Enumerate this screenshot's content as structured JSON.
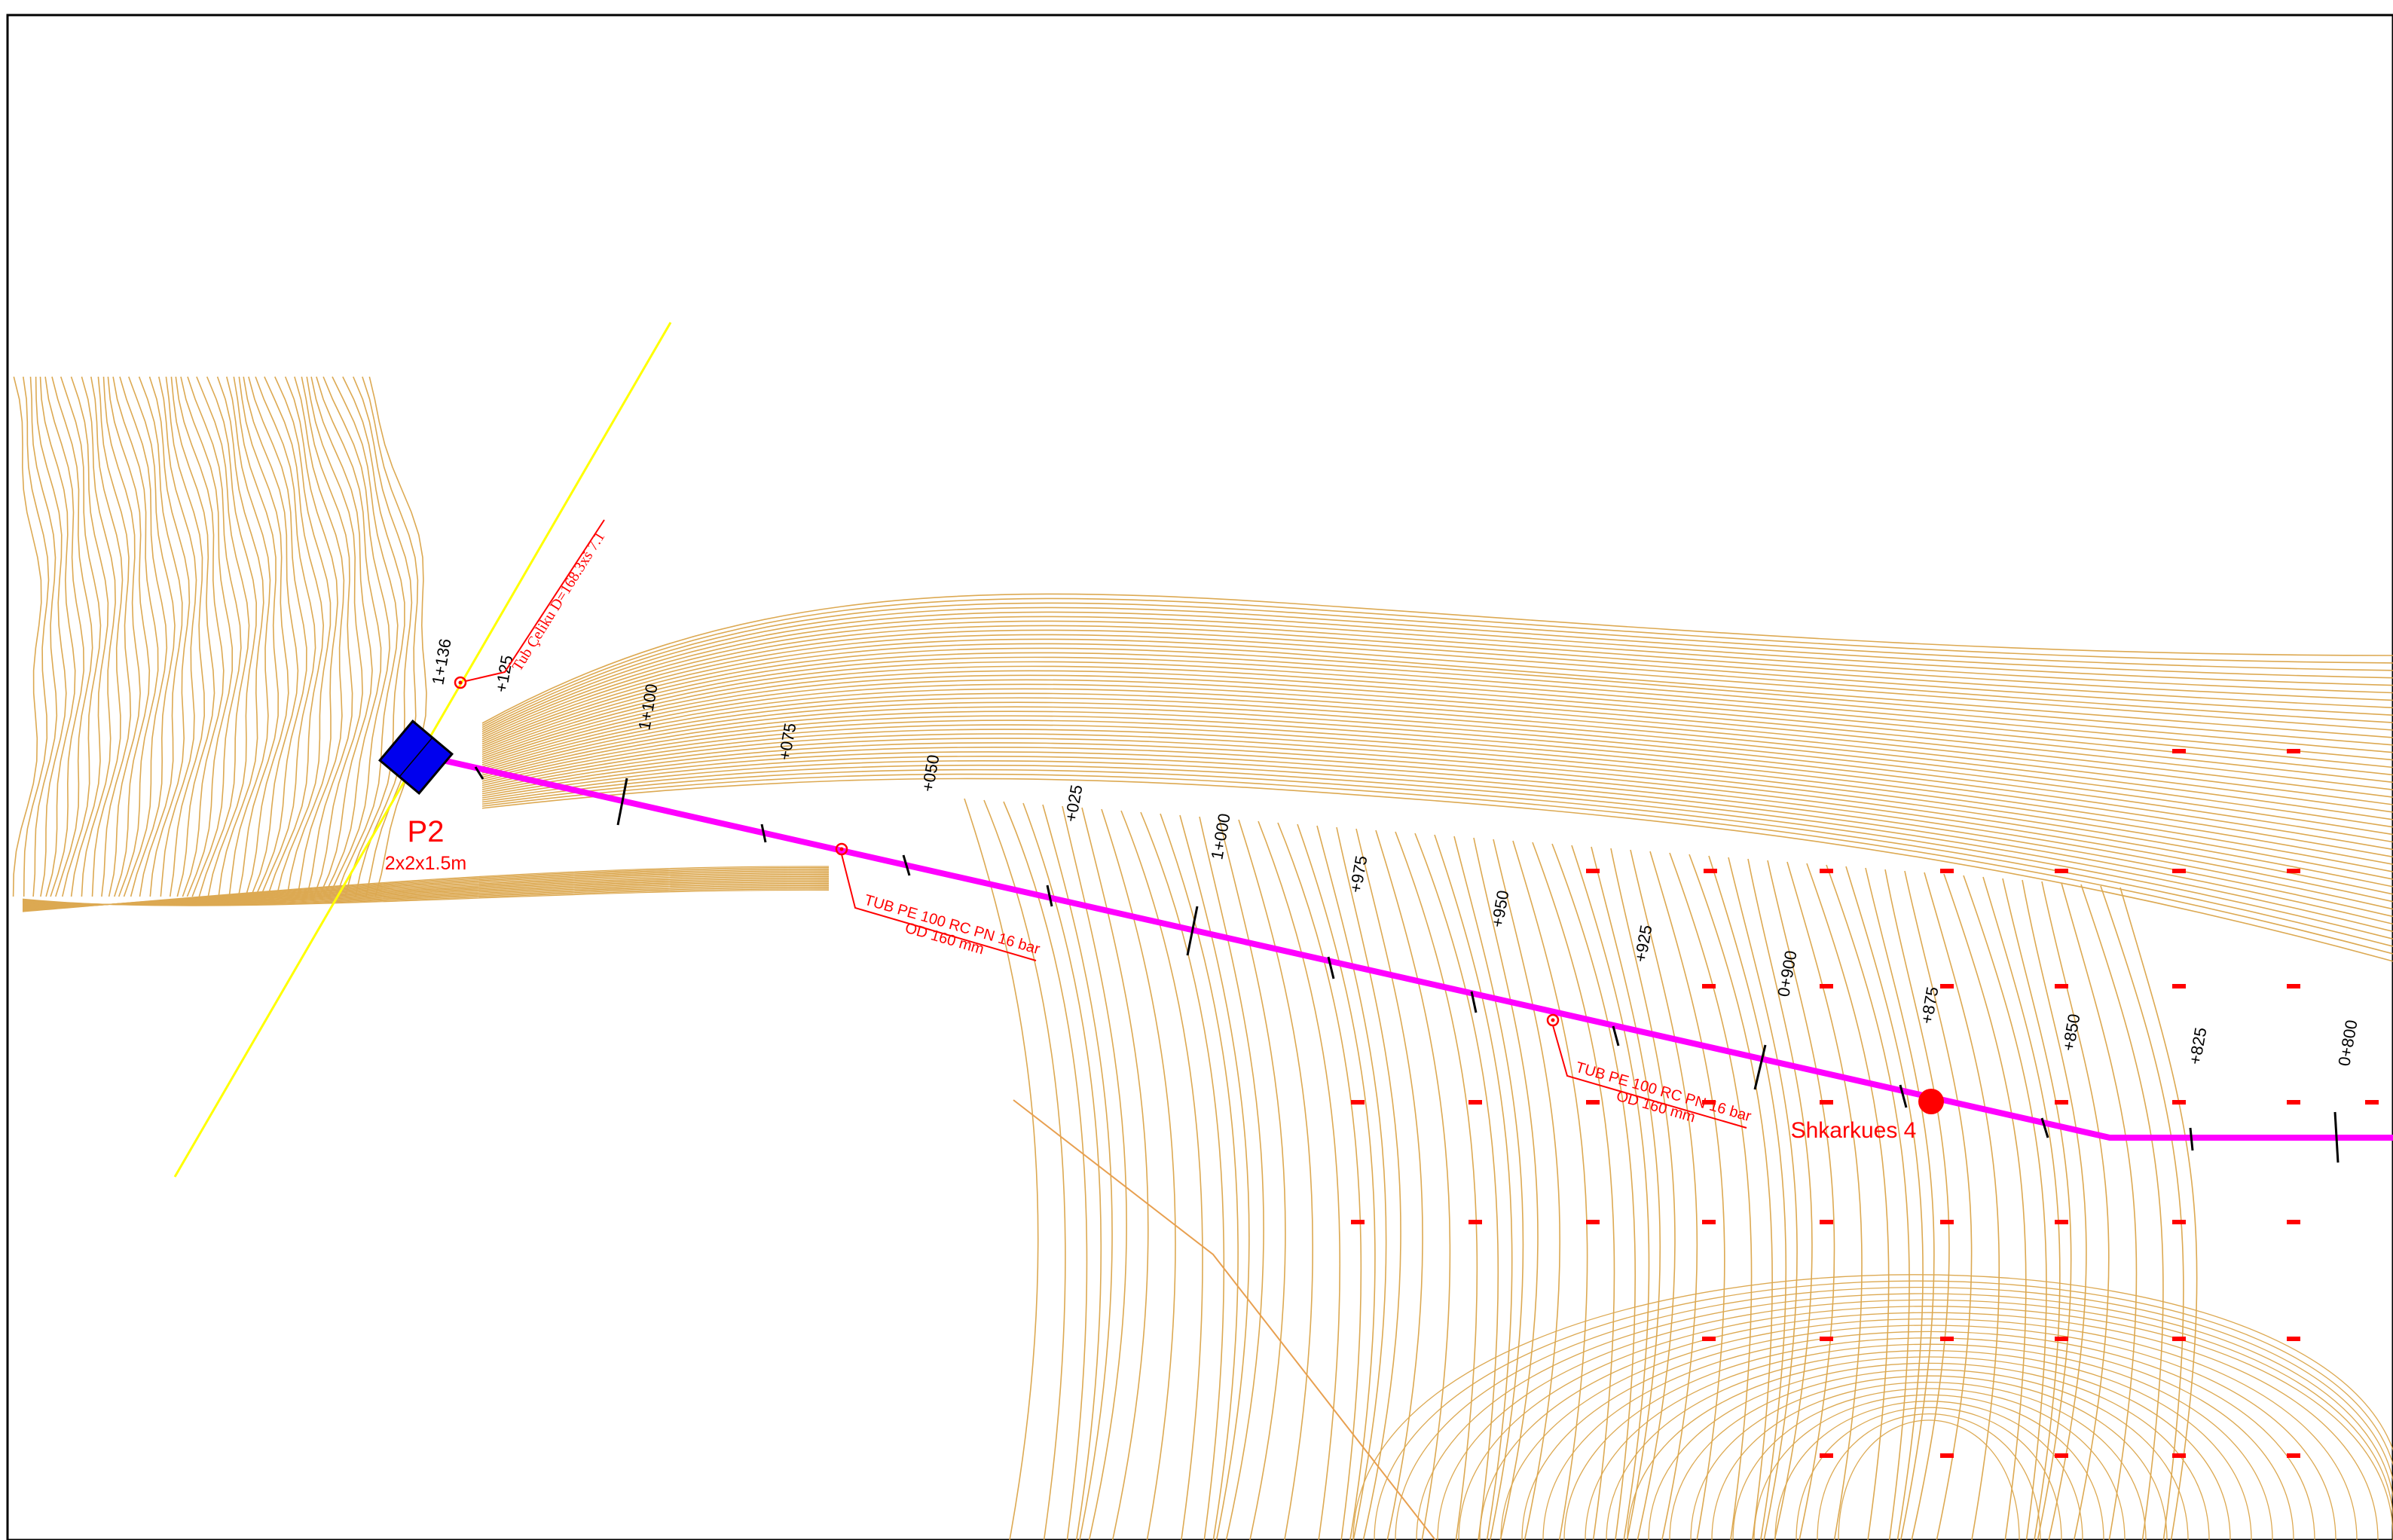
{
  "map": {
    "pumping_station": {
      "name": "P2",
      "dimensions": "2x2x1.5m"
    },
    "discharge_point": {
      "name": "Shkarkues 4"
    },
    "pipe_labels": [
      {
        "line1": "TUB PE 100 RC PN 16 bar",
        "line2": "OD 160 mm"
      },
      {
        "line1": "TUB PE 100 RC PN 16 bar",
        "line2": "OD 160 mm"
      }
    ],
    "steel_pipe_label": "Tub Çeliku D=168.3xš 7.1",
    "chainage_labels": [
      "1+136",
      "+125",
      "1+100",
      "+075",
      "+050",
      "+025",
      "1+000",
      "+975",
      "+950",
      "+925",
      "0+900",
      "+875",
      "+850",
      "+825",
      "0+800"
    ],
    "colors": {
      "pipeline": "#ff00ff",
      "contours": "#d9a040",
      "annotation": "#ff0000",
      "station": "#0000ee",
      "crossing_line": "#ffff00"
    }
  }
}
